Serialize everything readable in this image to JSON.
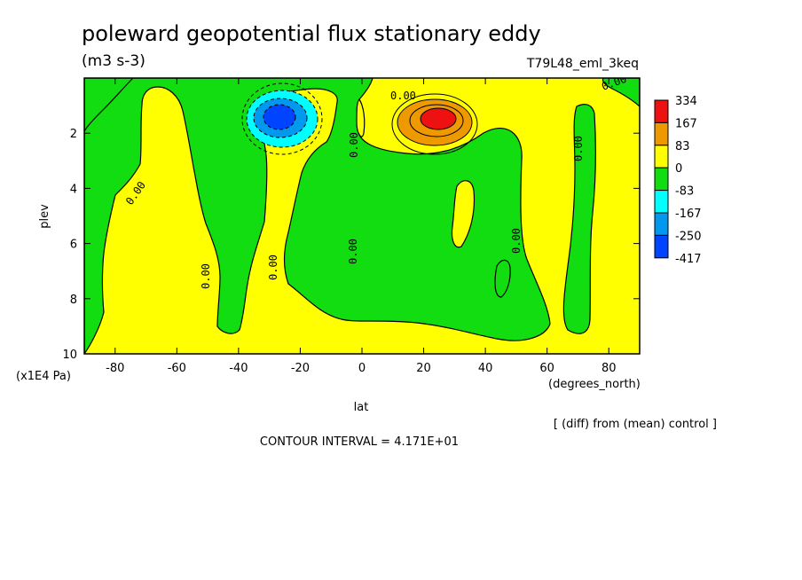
{
  "chart_data": {
    "type": "heatmap",
    "title": "poleward geopotential flux stationary eddy",
    "units": "(m3 s-3)",
    "experiment": "T79L48_eml_3keq",
    "xlabel": "lat",
    "x_units": "(degrees_north)",
    "ylabel": "plev",
    "y_units": "(x1E4 Pa)",
    "xlim": [
      -90,
      90
    ],
    "ylim": [
      10,
      0
    ],
    "x_ticks": [
      -80,
      -60,
      -40,
      -20,
      0,
      20,
      40,
      60,
      80
    ],
    "y_ticks": [
      2,
      4,
      6,
      8,
      10
    ],
    "contour_interval_text": "CONTOUR INTERVAL = 4.171E+01",
    "comparison_text": "[ (diff) from (mean) control ]",
    "contour_label": "0.00",
    "colorbar": {
      "labels": [
        "334",
        "167",
        "83",
        "0",
        "-83",
        "-167",
        "-250",
        "-417"
      ],
      "colors": [
        "#ee1111",
        "#ee9900",
        "#ffff00",
        "#11dd11",
        "#00ffff",
        "#0099ee",
        "#0044ff"
      ]
    },
    "features": [
      {
        "kind": "min",
        "lat": -26,
        "plev": 1.7,
        "value_range": "-417 to -250"
      },
      {
        "kind": "max",
        "lat": 26,
        "plev": 1.6,
        "value_range": "167 to 334"
      }
    ]
  }
}
